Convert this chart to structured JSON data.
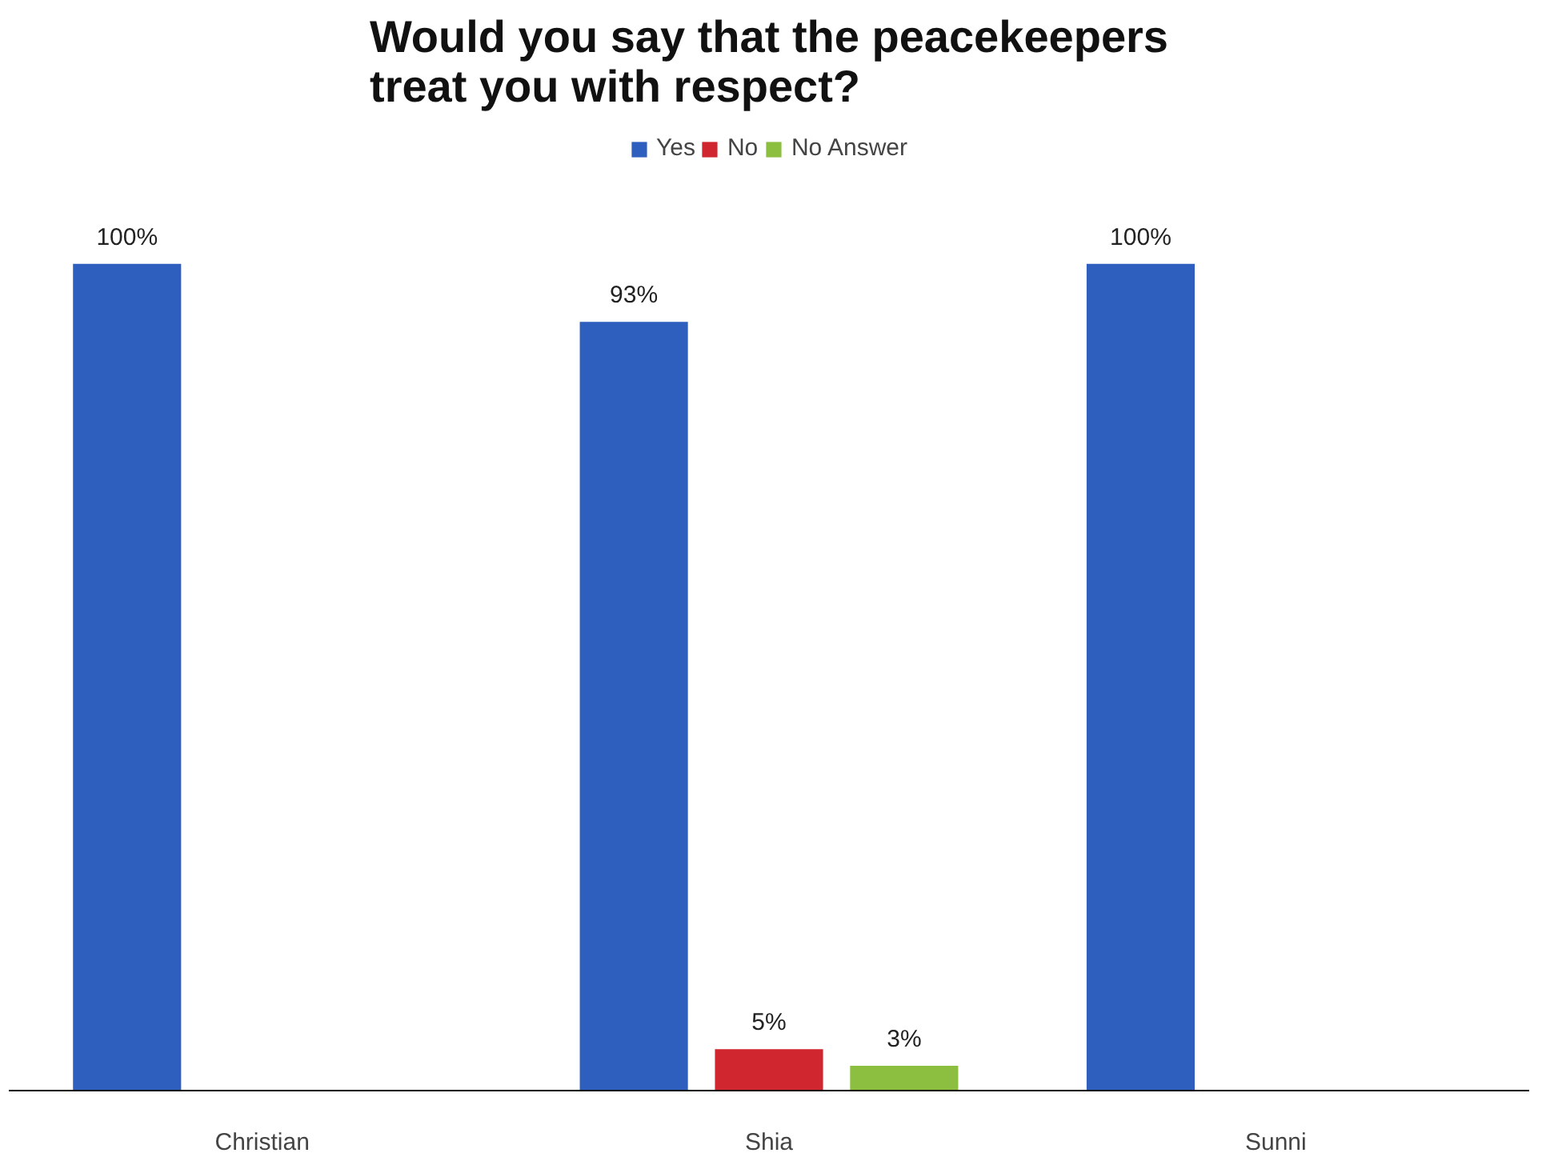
{
  "chart_data": {
    "type": "bar",
    "title": "Would you say that the peacekeepers treat you with respect?",
    "categories": [
      "Christian",
      "Shia",
      "Sunni"
    ],
    "series": [
      {
        "name": "Yes",
        "color": "#2e5fbf",
        "values": [
          100,
          93,
          100
        ],
        "value_labels": [
          "100%",
          "93%",
          "100%"
        ]
      },
      {
        "name": "No",
        "color": "#d0262f",
        "values": [
          null,
          5,
          null
        ],
        "value_labels": [
          null,
          "5%",
          null
        ]
      },
      {
        "name": "No Answer",
        "color": "#8cbf3f",
        "values": [
          null,
          3,
          null
        ],
        "value_labels": [
          null,
          "3%",
          null
        ]
      }
    ],
    "grid": false,
    "legend": "top"
  }
}
